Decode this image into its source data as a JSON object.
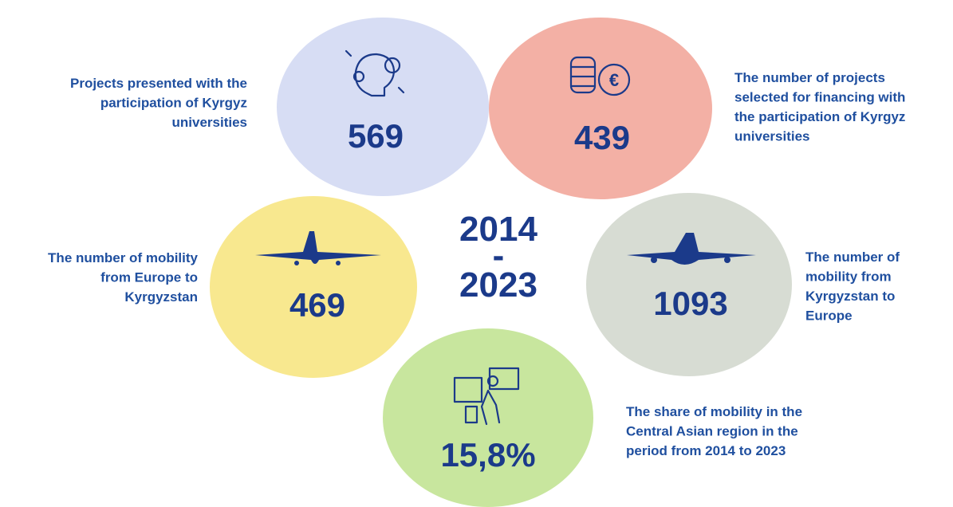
{
  "period": {
    "start": "2014",
    "separator": "-",
    "end": "2023"
  },
  "items": [
    {
      "value": "569",
      "label": [
        "Projects presented with the",
        "participation of Kyrgyz",
        "universities"
      ]
    },
    {
      "value": "439",
      "label": [
        "The number of projects",
        "selected for financing with",
        "the participation of Kyrgyz",
        "universities"
      ]
    },
    {
      "value": "469",
      "label": [
        "The number of mobility",
        "from Europe to",
        "Kyrgyzstan"
      ]
    },
    {
      "value": "1093",
      "label": [
        "The number of",
        "mobility from",
        "Kyrgyzstan to",
        "Europe"
      ]
    },
    {
      "value": "15,8%",
      "label": [
        "The share of mobility in the",
        "Central Asian region in the",
        "period from 2014 to 2023"
      ]
    }
  ]
}
